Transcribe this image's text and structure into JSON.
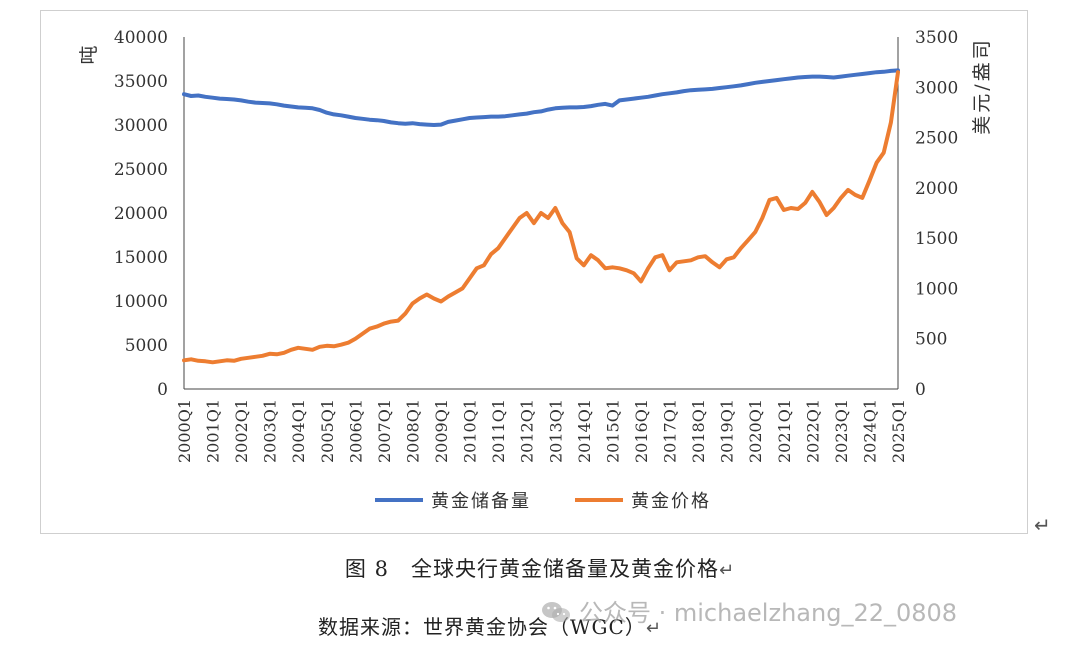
{
  "chart_data": {
    "type": "line",
    "x": [
      "2000Q1",
      "2000Q2",
      "2000Q3",
      "2000Q4",
      "2001Q1",
      "2001Q2",
      "2001Q3",
      "2001Q4",
      "2002Q1",
      "2002Q2",
      "2002Q3",
      "2002Q4",
      "2003Q1",
      "2003Q2",
      "2003Q3",
      "2003Q4",
      "2004Q1",
      "2004Q2",
      "2004Q3",
      "2004Q4",
      "2005Q1",
      "2005Q2",
      "2005Q3",
      "2005Q4",
      "2006Q1",
      "2006Q2",
      "2006Q3",
      "2006Q4",
      "2007Q1",
      "2007Q2",
      "2007Q3",
      "2007Q4",
      "2008Q1",
      "2008Q2",
      "2008Q3",
      "2008Q4",
      "2009Q1",
      "2009Q2",
      "2009Q3",
      "2009Q4",
      "2010Q1",
      "2010Q2",
      "2010Q3",
      "2010Q4",
      "2011Q1",
      "2011Q2",
      "2011Q3",
      "2011Q4",
      "2012Q1",
      "2012Q2",
      "2012Q3",
      "2012Q4",
      "2013Q1",
      "2013Q2",
      "2013Q3",
      "2013Q4",
      "2014Q1",
      "2014Q2",
      "2014Q3",
      "2014Q4",
      "2015Q1",
      "2015Q2",
      "2015Q3",
      "2015Q4",
      "2016Q1",
      "2016Q2",
      "2016Q3",
      "2016Q4",
      "2017Q1",
      "2017Q2",
      "2017Q3",
      "2017Q4",
      "2018Q1",
      "2018Q2",
      "2018Q3",
      "2018Q4",
      "2019Q1",
      "2019Q2",
      "2019Q3",
      "2019Q4",
      "2020Q1",
      "2020Q2",
      "2020Q3",
      "2020Q4",
      "2021Q1",
      "2021Q2",
      "2021Q3",
      "2021Q4",
      "2022Q1",
      "2022Q2",
      "2022Q3",
      "2022Q4",
      "2023Q1",
      "2023Q2",
      "2023Q3",
      "2023Q4",
      "2024Q1",
      "2024Q2",
      "2024Q3",
      "2024Q4",
      "2025Q1"
    ],
    "tick_labels": [
      "2000Q1",
      "2001Q1",
      "2002Q1",
      "2003Q1",
      "2004Q1",
      "2005Q1",
      "2006Q1",
      "2007Q1",
      "2008Q1",
      "2009Q1",
      "2010Q1",
      "2011Q1",
      "2012Q1",
      "2013Q1",
      "2014Q1",
      "2015Q1",
      "2016Q1",
      "2017Q1",
      "2018Q1",
      "2019Q1",
      "2020Q1",
      "2021Q1",
      "2022Q1",
      "2023Q1",
      "2024Q1",
      "2025Q1"
    ],
    "series": [
      {
        "name": "黄金储备量",
        "axis": "left",
        "color": "#4472C4",
        "values": [
          33500,
          33300,
          33350,
          33200,
          33100,
          33000,
          32950,
          32900,
          32800,
          32650,
          32550,
          32500,
          32450,
          32350,
          32200,
          32100,
          32000,
          31950,
          31900,
          31700,
          31400,
          31200,
          31100,
          30950,
          30800,
          30700,
          30600,
          30550,
          30450,
          30300,
          30200,
          30150,
          30200,
          30100,
          30050,
          30000,
          30050,
          30350,
          30500,
          30650,
          30800,
          30850,
          30900,
          30950,
          30950,
          31000,
          31100,
          31200,
          31300,
          31450,
          31550,
          31750,
          31900,
          31950,
          32000,
          32000,
          32050,
          32150,
          32300,
          32400,
          32200,
          32800,
          32900,
          33000,
          33100,
          33200,
          33350,
          33500,
          33600,
          33700,
          33850,
          33950,
          34000,
          34050,
          34100,
          34200,
          34300,
          34400,
          34500,
          34650,
          34800,
          34900,
          35000,
          35100,
          35200,
          35300,
          35400,
          35450,
          35500,
          35500,
          35450,
          35400,
          35500,
          35600,
          35700,
          35800,
          35900,
          36000,
          36050,
          36150,
          36200
        ]
      },
      {
        "name": "黄金价格",
        "axis": "right",
        "color": "#ED7D31",
        "values": [
          285,
          295,
          280,
          275,
          265,
          275,
          285,
          280,
          300,
          310,
          320,
          330,
          350,
          345,
          360,
          390,
          410,
          400,
          390,
          420,
          430,
          425,
          440,
          460,
          500,
          550,
          600,
          620,
          650,
          670,
          680,
          750,
          850,
          900,
          940,
          900,
          870,
          920,
          960,
          1000,
          1100,
          1200,
          1230,
          1340,
          1400,
          1500,
          1600,
          1700,
          1750,
          1650,
          1750,
          1700,
          1800,
          1650,
          1560,
          1300,
          1230,
          1330,
          1280,
          1200,
          1210,
          1200,
          1180,
          1150,
          1070,
          1200,
          1310,
          1330,
          1180,
          1260,
          1270,
          1280,
          1310,
          1320,
          1260,
          1210,
          1290,
          1310,
          1400,
          1480,
          1560,
          1700,
          1880,
          1900,
          1780,
          1800,
          1790,
          1850,
          1960,
          1860,
          1730,
          1800,
          1900,
          1980,
          1930,
          1900,
          2070,
          2250,
          2350,
          2650,
          3150
        ]
      }
    ],
    "y_left": {
      "label": "吨",
      "min": 0,
      "max": 40000,
      "ticks": [
        0,
        5000,
        10000,
        15000,
        20000,
        25000,
        30000,
        35000,
        40000
      ]
    },
    "y_right": {
      "label": "美元/盎司",
      "min": 0,
      "max": 3500,
      "ticks": [
        0,
        500,
        1000,
        1500,
        2000,
        2500,
        3000,
        3500
      ]
    },
    "legend_position": "bottom",
    "grid": false
  },
  "caption": "图 8　全球央行黄金储备量及黄金价格",
  "source_text": "数据来源：世界黄金协会（WGC）",
  "return_mark": "↵",
  "watermark": {
    "text": "公众号 · michaelzhang_22_0808",
    "icon": "wechat-logo-icon"
  }
}
